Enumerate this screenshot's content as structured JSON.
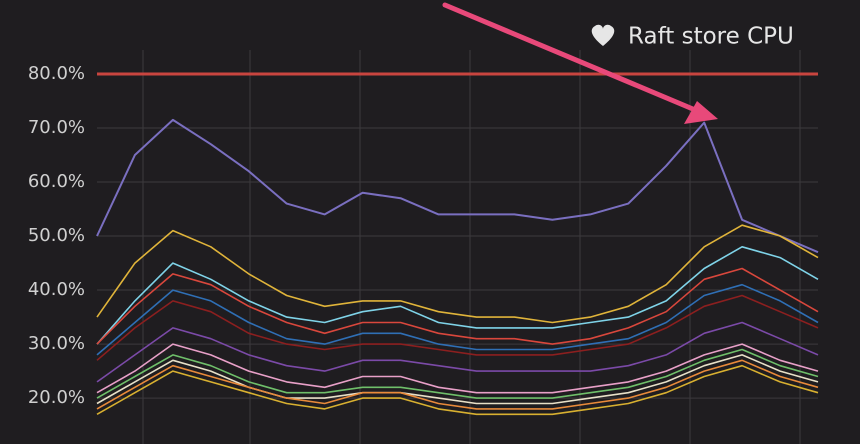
{
  "chart_data": {
    "type": "line",
    "title": "Raft store CPU",
    "ylim": [
      11.5,
      93.7
    ],
    "yticks": [
      {
        "value": 20,
        "label": "20.0%"
      },
      {
        "value": 30,
        "label": "30.0%"
      },
      {
        "value": 40,
        "label": "40.0%"
      },
      {
        "value": 50,
        "label": "50.0%"
      },
      {
        "value": 60,
        "label": "60.0%"
      },
      {
        "value": 70,
        "label": "70.0%"
      },
      {
        "value": 80,
        "label": "80.0%"
      }
    ],
    "grid": true,
    "threshold": 80,
    "threshold_color": "#c9453f",
    "series": [
      {
        "color": "#7a6fc0",
        "values": [
          50,
          65,
          71.5,
          67,
          62,
          56,
          54,
          58,
          57,
          54,
          54,
          54,
          53,
          54,
          56,
          63,
          71,
          53,
          50,
          47
        ]
      },
      {
        "color": "#e0b43a",
        "values": [
          35,
          45,
          51,
          48,
          43,
          39,
          37,
          38,
          38,
          36,
          35,
          35,
          34,
          35,
          37,
          41,
          48,
          52,
          50,
          46
        ]
      },
      {
        "color": "#7fd3e8",
        "values": [
          30,
          38,
          45,
          42,
          38,
          35,
          34,
          36,
          37,
          34,
          33,
          33,
          33,
          34,
          35,
          38,
          44,
          48,
          46,
          42
        ]
      },
      {
        "color": "#d9473c",
        "values": [
          30,
          37,
          43,
          41,
          37,
          34,
          32,
          34,
          34,
          32,
          31,
          31,
          30,
          31,
          33,
          36,
          42,
          44,
          40,
          36
        ]
      },
      {
        "color": "#2f6fb5",
        "values": [
          28,
          34,
          40,
          38,
          34,
          31,
          30,
          32,
          32,
          30,
          29,
          29,
          29,
          30,
          31,
          34,
          39,
          41,
          38,
          34
        ]
      },
      {
        "color": "#8c1f1f",
        "values": [
          27,
          33,
          38,
          36,
          32,
          30,
          29,
          30,
          30,
          29,
          28,
          28,
          28,
          29,
          30,
          33,
          37,
          39,
          36,
          33
        ]
      },
      {
        "color": "#7b4aa8",
        "values": [
          23,
          28,
          33,
          31,
          28,
          26,
          25,
          27,
          27,
          26,
          25,
          25,
          25,
          25,
          26,
          28,
          32,
          34,
          31,
          28
        ]
      },
      {
        "color": "#e8a0c8",
        "values": [
          21,
          25,
          30,
          28,
          25,
          23,
          22,
          24,
          24,
          22,
          21,
          21,
          21,
          22,
          23,
          25,
          28,
          30,
          27,
          25
        ]
      },
      {
        "color": "#6fbf6a",
        "values": [
          20,
          24,
          28,
          26,
          23,
          21,
          21,
          22,
          22,
          21,
          20,
          20,
          20,
          21,
          22,
          24,
          27,
          29,
          26,
          24
        ]
      },
      {
        "color": "#e8e0c8",
        "values": [
          19,
          23,
          27,
          25,
          22,
          20,
          20,
          21,
          21,
          20,
          19,
          19,
          19,
          20,
          21,
          23,
          26,
          28,
          25,
          23
        ]
      },
      {
        "color": "#e88a3a",
        "values": [
          18,
          22,
          26,
          24,
          22,
          20,
          19,
          21,
          21,
          19,
          18,
          18,
          18,
          19,
          20,
          22,
          25,
          27,
          24,
          22
        ]
      },
      {
        "color": "#d8b030",
        "values": [
          17,
          21,
          25,
          23,
          21,
          19,
          18,
          20,
          20,
          18,
          17,
          17,
          17,
          18,
          19,
          21,
          24,
          26,
          23,
          21
        ]
      }
    ]
  }
}
